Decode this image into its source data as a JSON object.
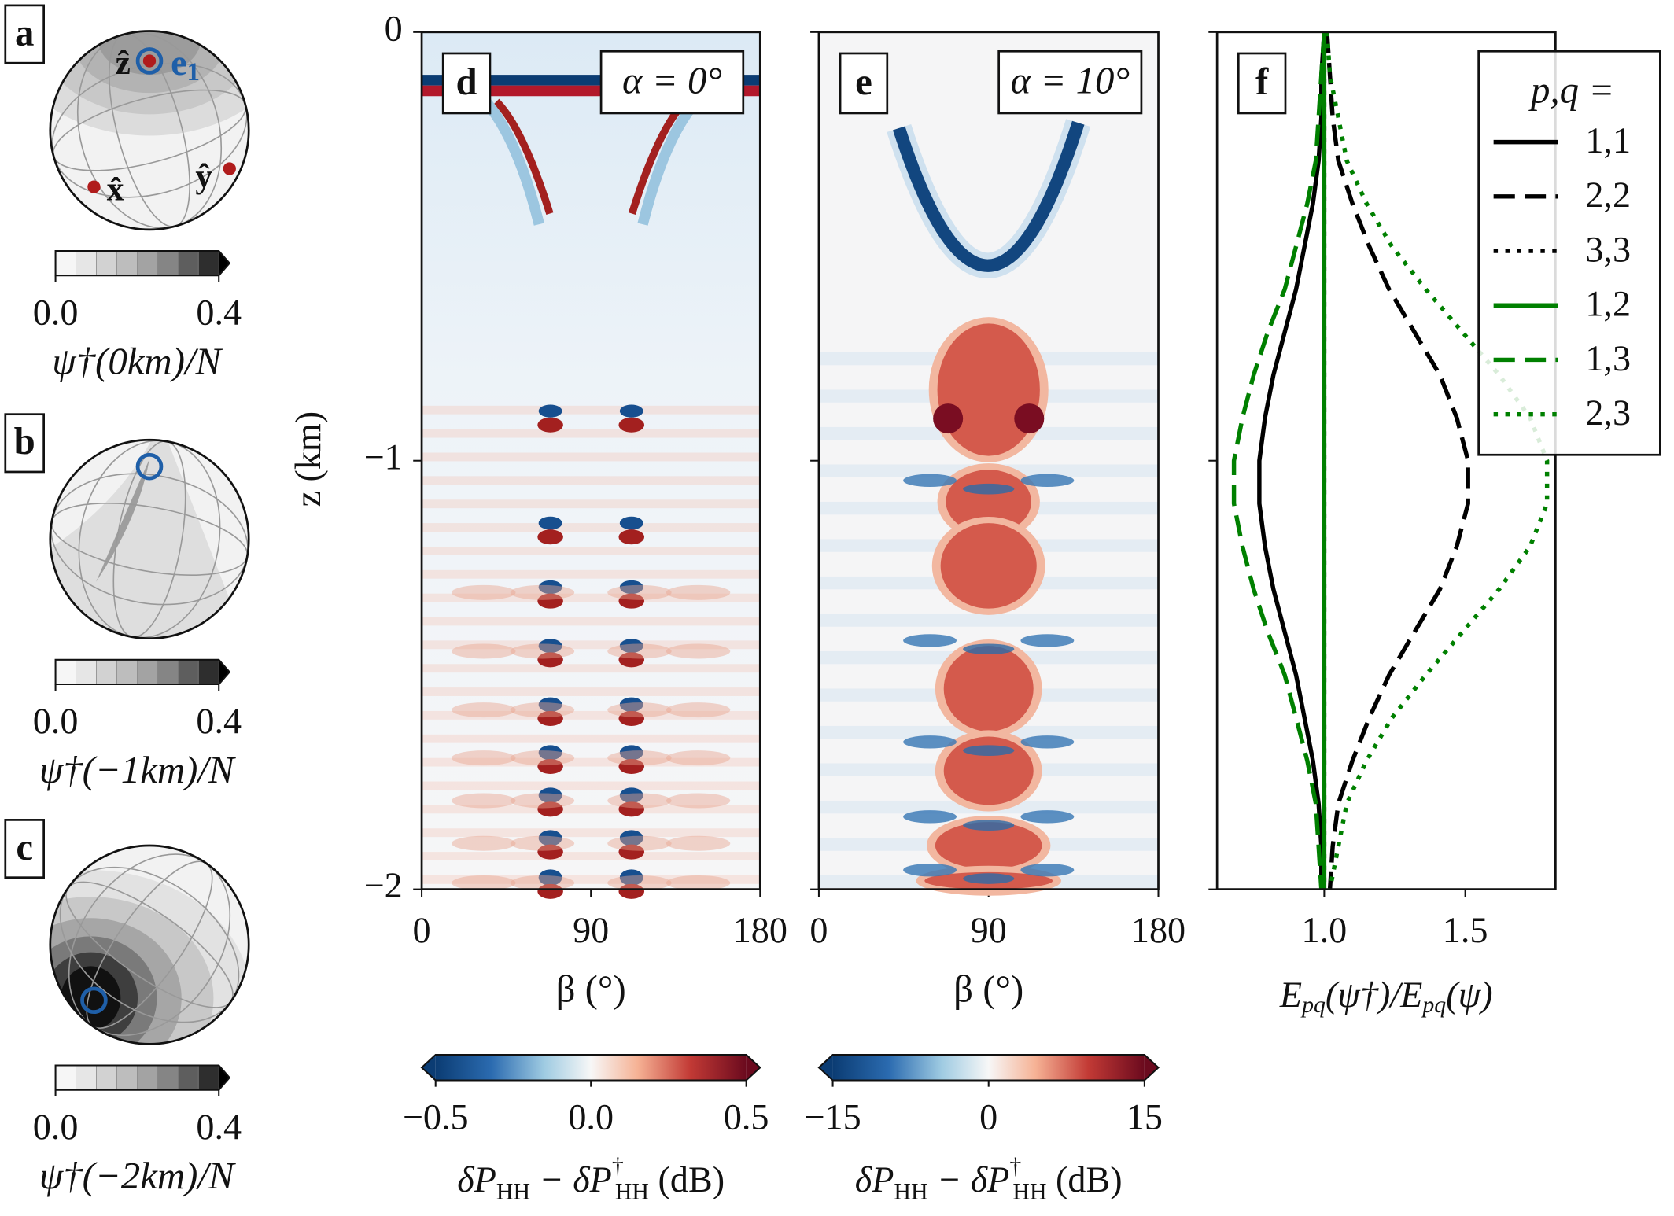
{
  "chart_data": [
    {
      "type": "sphere",
      "panel": "a",
      "axis_labels": [
        "ẑ",
        "x̂",
        "ŷ"
      ],
      "vector_label": [
        "e",
        "1"
      ],
      "colorbar": {
        "lim": [
          0,
          0.4
        ],
        "ticks": [
          {
            "value": 0,
            "label": "0.0"
          },
          {
            "value": 0.4,
            "label": "0.4"
          }
        ],
        "label": "ψ†(0km)/N"
      }
    },
    {
      "type": "sphere",
      "panel": "b",
      "colorbar": {
        "lim": [
          0,
          0.4
        ],
        "ticks": [
          {
            "value": 0,
            "label": "0.0"
          },
          {
            "value": 0.4,
            "label": "0.4"
          }
        ],
        "label": "ψ†(−1km)/N"
      }
    },
    {
      "type": "sphere",
      "panel": "c",
      "colorbar": {
        "lim": [
          0,
          0.4
        ],
        "ticks": [
          {
            "value": 0,
            "label": "0.0"
          },
          {
            "value": 0.4,
            "label": "0.4"
          }
        ],
        "label": "ψ†(−2km)/N"
      }
    },
    {
      "type": "heatmap",
      "panel": "d",
      "annotation": "α = 0°",
      "xlabel": "β (°)",
      "ylabel": "z (km)",
      "xlim": [
        0,
        180
      ],
      "xticks": [
        0,
        90,
        180
      ],
      "ylim": [
        -2,
        0
      ],
      "yticks": [
        {
          "value": -2,
          "label": "−2"
        },
        {
          "value": -1,
          "label": "−1"
        },
        0
      ],
      "colorbar": {
        "lim": [
          -0.5,
          0.5
        ],
        "ticks": [
          {
            "value": -0.5,
            "label": "−0.5"
          },
          {
            "value": 0,
            "label": "0.0"
          },
          {
            "value": 0.5,
            "label": "0.5"
          }
        ],
        "label": [
          "δP",
          "HH",
          " − δP",
          "†",
          "HH",
          " (dB)"
        ]
      }
    },
    {
      "type": "heatmap",
      "panel": "e",
      "annotation": "α = 10°",
      "xlabel": "β (°)",
      "xlim": [
        0,
        180
      ],
      "xticks": [
        0,
        90,
        180
      ],
      "ylim": [
        -2,
        0
      ],
      "yticks": [
        -2,
        -1,
        0
      ],
      "colorbar": {
        "lim": [
          -15,
          15
        ],
        "ticks": [
          {
            "value": -15,
            "label": "−15"
          },
          0,
          15
        ],
        "label": [
          "δP",
          "HH",
          " − δP",
          "†",
          "HH",
          " (dB)"
        ]
      }
    },
    {
      "type": "line",
      "panel": "f",
      "xlabel": [
        "E",
        "pq",
        "(ψ†)/",
        "E",
        "pq",
        "(ψ)"
      ],
      "legend_title": "p,q =",
      "legend": "upper right",
      "xlim": [
        0.62,
        1.82
      ],
      "xticks": [
        {
          "value": 1,
          "label": "1.0"
        },
        {
          "value": 1.5,
          "label": "1.5"
        }
      ],
      "ylim": [
        -2,
        0
      ],
      "yticks": [
        -2,
        -1,
        0
      ],
      "z": [
        0,
        -0.1,
        -0.2,
        -0.3,
        -0.4,
        -0.5,
        -0.6,
        -0.7,
        -0.8,
        -0.9,
        -1.0,
        -1.1,
        -1.2,
        -1.3,
        -1.4,
        -1.5,
        -1.6,
        -1.7,
        -1.8,
        -1.9,
        -2.0
      ],
      "series": [
        {
          "name": "1,1",
          "color": "#000000",
          "dash": "solid",
          "values": [
            1.0,
            0.99,
            0.99,
            0.98,
            0.96,
            0.93,
            0.9,
            0.86,
            0.82,
            0.79,
            0.77,
            0.77,
            0.79,
            0.82,
            0.86,
            0.9,
            0.93,
            0.96,
            0.98,
            0.99,
            0.99
          ]
        },
        {
          "name": "2,2",
          "color": "#000000",
          "dash": "dashed",
          "values": [
            1.01,
            1.02,
            1.03,
            1.05,
            1.1,
            1.16,
            1.23,
            1.32,
            1.41,
            1.47,
            1.51,
            1.51,
            1.47,
            1.41,
            1.32,
            1.23,
            1.16,
            1.1,
            1.05,
            1.03,
            1.02
          ]
        },
        {
          "name": "3,3",
          "color": "#000000",
          "dash": "dotted",
          "values": [
            1.0,
            1.0,
            1.0,
            1.0,
            1.0,
            1.0,
            1.0,
            1.0,
            1.0,
            1.0,
            1.0,
            1.0,
            1.0,
            1.0,
            1.0,
            1.0,
            1.0,
            1.0,
            1.0,
            1.0,
            1.0
          ]
        },
        {
          "name": "1,2",
          "color": "#008000",
          "dash": "solid",
          "values": [
            1.0,
            1.0,
            1.0,
            1.0,
            1.0,
            1.0,
            1.0,
            1.0,
            1.0,
            1.0,
            1.0,
            1.0,
            1.0,
            1.0,
            1.0,
            1.0,
            1.0,
            1.0,
            1.0,
            1.0,
            1.0
          ]
        },
        {
          "name": "1,3",
          "color": "#008000",
          "dash": "dashed",
          "values": [
            1.0,
            0.99,
            0.98,
            0.97,
            0.94,
            0.9,
            0.86,
            0.8,
            0.75,
            0.71,
            0.68,
            0.68,
            0.71,
            0.75,
            0.8,
            0.86,
            0.9,
            0.94,
            0.97,
            0.98,
            0.99
          ]
        },
        {
          "name": "2,3",
          "color": "#008000",
          "dash": "dotted",
          "values": [
            1.01,
            1.02,
            1.05,
            1.08,
            1.15,
            1.24,
            1.36,
            1.49,
            1.62,
            1.73,
            1.79,
            1.79,
            1.73,
            1.62,
            1.49,
            1.36,
            1.24,
            1.15,
            1.08,
            1.05,
            1.02
          ]
        }
      ]
    }
  ]
}
